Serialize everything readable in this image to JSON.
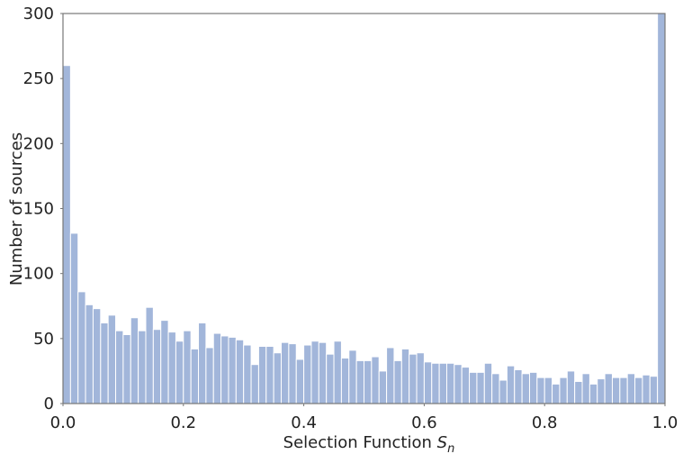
{
  "chart_data": {
    "type": "histogram",
    "x_label": "Selection Function",
    "x_label_symbol": "S",
    "x_label_subscript": "n",
    "y_label": "Number of sources",
    "color": "#a2b6da",
    "bins": [
      0,
      0.0125,
      0.025,
      0.0375,
      0.05,
      0.0625,
      0.075,
      0.0875,
      0.1,
      0.1125,
      0.125,
      0.1375,
      0.15,
      0.1625,
      0.175,
      0.1875,
      0.2,
      0.2125,
      0.225,
      0.2375,
      0.25,
      0.2625,
      0.275,
      0.2875,
      0.3,
      0.3125,
      0.325,
      0.3375,
      0.35,
      0.3625,
      0.375,
      0.3875,
      0.4,
      0.4125,
      0.425,
      0.4375,
      0.45,
      0.4625,
      0.475,
      0.4875,
      0.5,
      0.5125,
      0.525,
      0.5375,
      0.55,
      0.5625,
      0.575,
      0.5875,
      0.6,
      0.6125,
      0.625,
      0.6375,
      0.65,
      0.6625,
      0.675,
      0.6875,
      0.7,
      0.7125,
      0.725,
      0.7375,
      0.75,
      0.7625,
      0.775,
      0.7875,
      0.8,
      0.8125,
      0.825,
      0.8375,
      0.85,
      0.8625,
      0.875,
      0.8875,
      0.9,
      0.9125,
      0.925,
      0.9375,
      0.95,
      0.9625,
      0.975,
      0.9875,
      1
    ],
    "counts": [
      260,
      131,
      86,
      76,
      73,
      62,
      68,
      56,
      53,
      66,
      56,
      74,
      57,
      64,
      55,
      48,
      56,
      42,
      62,
      43,
      54,
      52,
      51,
      49,
      45,
      30,
      44,
      44,
      39,
      47,
      46,
      34,
      45,
      48,
      47,
      38,
      48,
      35,
      41,
      33,
      33,
      36,
      25,
      43,
      33,
      42,
      38,
      39,
      32,
      31,
      31,
      31,
      30,
      28,
      24,
      24,
      31,
      23,
      18,
      29,
      26,
      23,
      24,
      20,
      20,
      15,
      20,
      25,
      17,
      23,
      15,
      19,
      23,
      20,
      20,
      23,
      20,
      22,
      21,
      300
    ],
    "xlim": [
      0,
      1
    ],
    "ylim": [
      0,
      300
    ],
    "xticks": [
      {
        "value": 0,
        "label": "0.0"
      },
      0.2,
      0.4,
      0.6,
      0.8,
      {
        "value": 1,
        "label": "1.0"
      }
    ],
    "yticks": [
      0,
      50,
      100,
      150,
      200,
      250,
      300
    ]
  }
}
